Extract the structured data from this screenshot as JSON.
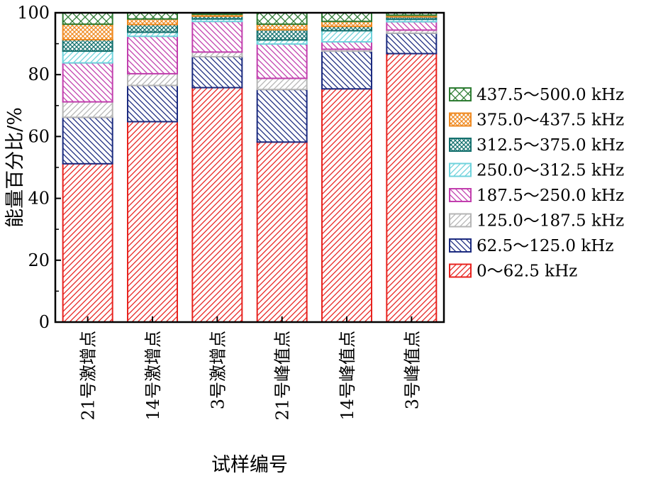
{
  "chart_data": {
    "type": "bar",
    "stacked": true,
    "title": "",
    "xlabel": "试样编号",
    "ylabel": "能量百分比/%",
    "ylim": [
      0,
      100
    ],
    "yticks": [
      0,
      20,
      40,
      60,
      80,
      100
    ],
    "grid": false,
    "legend_position": "right",
    "categories": [
      "21号激增点",
      "14号激增点",
      "3号激增点",
      "21号峰值点",
      "14号峰值点",
      "3号峰值点"
    ],
    "series": [
      {
        "name": "0～62.5 kHz",
        "color": "#e8231f",
        "pattern": "diag-right",
        "values": [
          51.2,
          64.8,
          75.8,
          58.2,
          75.4,
          86.8
        ]
      },
      {
        "name": "62.5～125.0 kHz",
        "color": "#1c2b80",
        "pattern": "diag-left",
        "values": [
          15.0,
          11.7,
          10.0,
          17.0,
          12.2,
          6.6
        ]
      },
      {
        "name": "125.0～187.5 kHz",
        "color": "#b5b5b5",
        "pattern": "diag-right",
        "values": [
          5.0,
          3.8,
          1.5,
          3.6,
          0.6,
          1.0
        ]
      },
      {
        "name": "187.5～250.0 kHz",
        "color": "#c23fae",
        "pattern": "diag-left",
        "values": [
          12.6,
          12.1,
          9.9,
          11.1,
          2.4,
          2.7
        ]
      },
      {
        "name": "250.0～312.5 kHz",
        "color": "#6fd3dc",
        "pattern": "diag-right",
        "values": [
          3.8,
          1.3,
          0.8,
          1.3,
          3.6,
          0.8
        ]
      },
      {
        "name": "312.5～375.0 kHz",
        "color": "#13706d",
        "pattern": "cross",
        "values": [
          3.7,
          2.5,
          0.9,
          3.3,
          1.4,
          0.8
        ]
      },
      {
        "name": "375.0～437.5 kHz",
        "color": "#ef8a21",
        "pattern": "cross",
        "values": [
          5.0,
          1.8,
          0.6,
          1.8,
          1.6,
          0.5
        ]
      },
      {
        "name": "437.5～500.0 kHz",
        "color": "#2f7d34",
        "pattern": "cross-wide",
        "values": [
          3.7,
          2.0,
          0.5,
          3.7,
          2.8,
          0.8
        ]
      }
    ]
  }
}
